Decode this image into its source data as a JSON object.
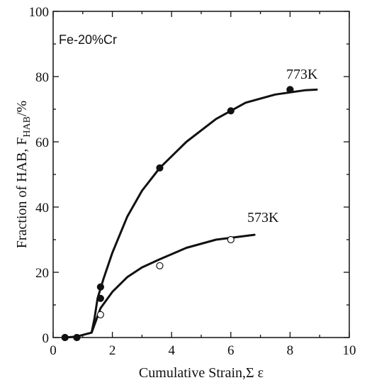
{
  "chart_data": {
    "type": "line",
    "title": "",
    "annotation": "Fe-20%Cr",
    "xlabel": "Cumulative Strain,Σ  ε",
    "ylabel_main": "Fraction of HAB, F",
    "ylabel_sub": "HAB",
    "ylabel_unit": "/%",
    "xlim": [
      0,
      10
    ],
    "ylim": [
      0,
      100
    ],
    "xticks": [
      0,
      2,
      4,
      6,
      8,
      10
    ],
    "yticks": [
      0,
      20,
      40,
      60,
      80,
      100
    ],
    "grid": false,
    "series": [
      {
        "name": "773K",
        "marker": "filled-circle",
        "points": [
          {
            "x": 0.4,
            "y": 0
          },
          {
            "x": 0.8,
            "y": 0
          },
          {
            "x": 1.6,
            "y": 12
          },
          {
            "x": 1.6,
            "y": 15.5
          },
          {
            "x": 3.6,
            "y": 52
          },
          {
            "x": 6.0,
            "y": 69.5
          },
          {
            "x": 8.0,
            "y": 76
          }
        ],
        "fit": [
          {
            "x": 0.4,
            "y": 0
          },
          {
            "x": 0.8,
            "y": 0.3
          },
          {
            "x": 1.3,
            "y": 1.5
          },
          {
            "x": 1.4,
            "y": 6
          },
          {
            "x": 1.5,
            "y": 12
          },
          {
            "x": 1.7,
            "y": 18
          },
          {
            "x": 2.0,
            "y": 26
          },
          {
            "x": 2.5,
            "y": 37
          },
          {
            "x": 3.0,
            "y": 45
          },
          {
            "x": 3.6,
            "y": 52
          },
          {
            "x": 4.5,
            "y": 60
          },
          {
            "x": 5.5,
            "y": 67
          },
          {
            "x": 6.5,
            "y": 72
          },
          {
            "x": 7.5,
            "y": 74.5
          },
          {
            "x": 8.5,
            "y": 75.8
          },
          {
            "x": 8.9,
            "y": 76
          }
        ]
      },
      {
        "name": "573K",
        "marker": "open-circle",
        "points": [
          {
            "x": 1.6,
            "y": 7
          },
          {
            "x": 3.6,
            "y": 22
          },
          {
            "x": 6.0,
            "y": 30
          }
        ],
        "fit": [
          {
            "x": 1.3,
            "y": 1.5
          },
          {
            "x": 1.4,
            "y": 4
          },
          {
            "x": 1.6,
            "y": 9
          },
          {
            "x": 2.0,
            "y": 14
          },
          {
            "x": 2.5,
            "y": 18.5
          },
          {
            "x": 3.0,
            "y": 21.5
          },
          {
            "x": 3.6,
            "y": 24
          },
          {
            "x": 4.5,
            "y": 27.5
          },
          {
            "x": 5.5,
            "y": 30
          },
          {
            "x": 6.8,
            "y": 31.5
          }
        ]
      }
    ]
  }
}
